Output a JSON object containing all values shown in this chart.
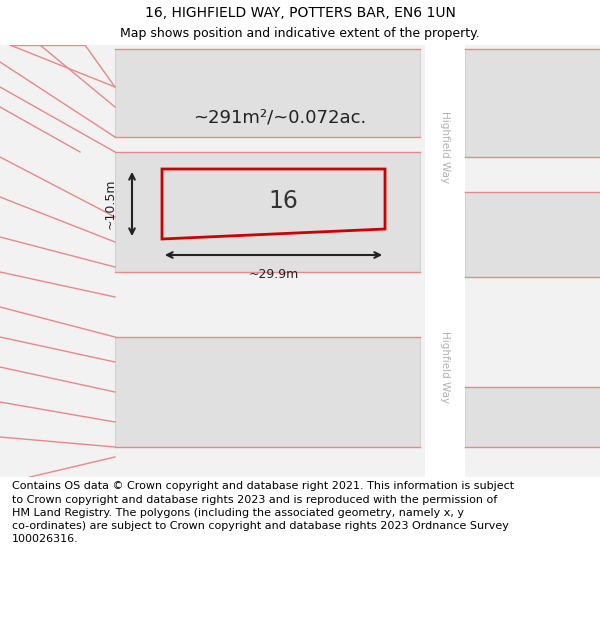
{
  "title": "16, HIGHFIELD WAY, POTTERS BAR, EN6 1UN",
  "subtitle": "Map shows position and indicative extent of the property.",
  "footer": "Contains OS data © Crown copyright and database right 2021. This information is subject\nto Crown copyright and database rights 2023 and is reproduced with the permission of\nHM Land Registry. The polygons (including the associated geometry, namely x, y\nco-ordinates) are subject to Crown copyright and database rights 2023 Ordnance Survey\n100026316.",
  "bg_color": "#f2f2f2",
  "map_bg": "#f2f2f2",
  "block_fill": "#e0e0e0",
  "block_edge": "#c8c8c8",
  "property_fill": "#e0e0e0",
  "property_edge": "#cc0000",
  "road_fill": "#ffffff",
  "pink_line_color": "#e88888",
  "annotation_label": "16",
  "area_label": "~291m²/~0.072ac.",
  "width_label": "~29.9m",
  "height_label": "~10.5m",
  "road_label": "Highfield Way",
  "title_fontsize": 10,
  "subtitle_fontsize": 9,
  "footer_fontsize": 8,
  "title_color": "#000000",
  "road_label_color": "#b0b0b0",
  "measure_color": "#222222",
  "num16_fontsize": 18,
  "area_fontsize": 13
}
